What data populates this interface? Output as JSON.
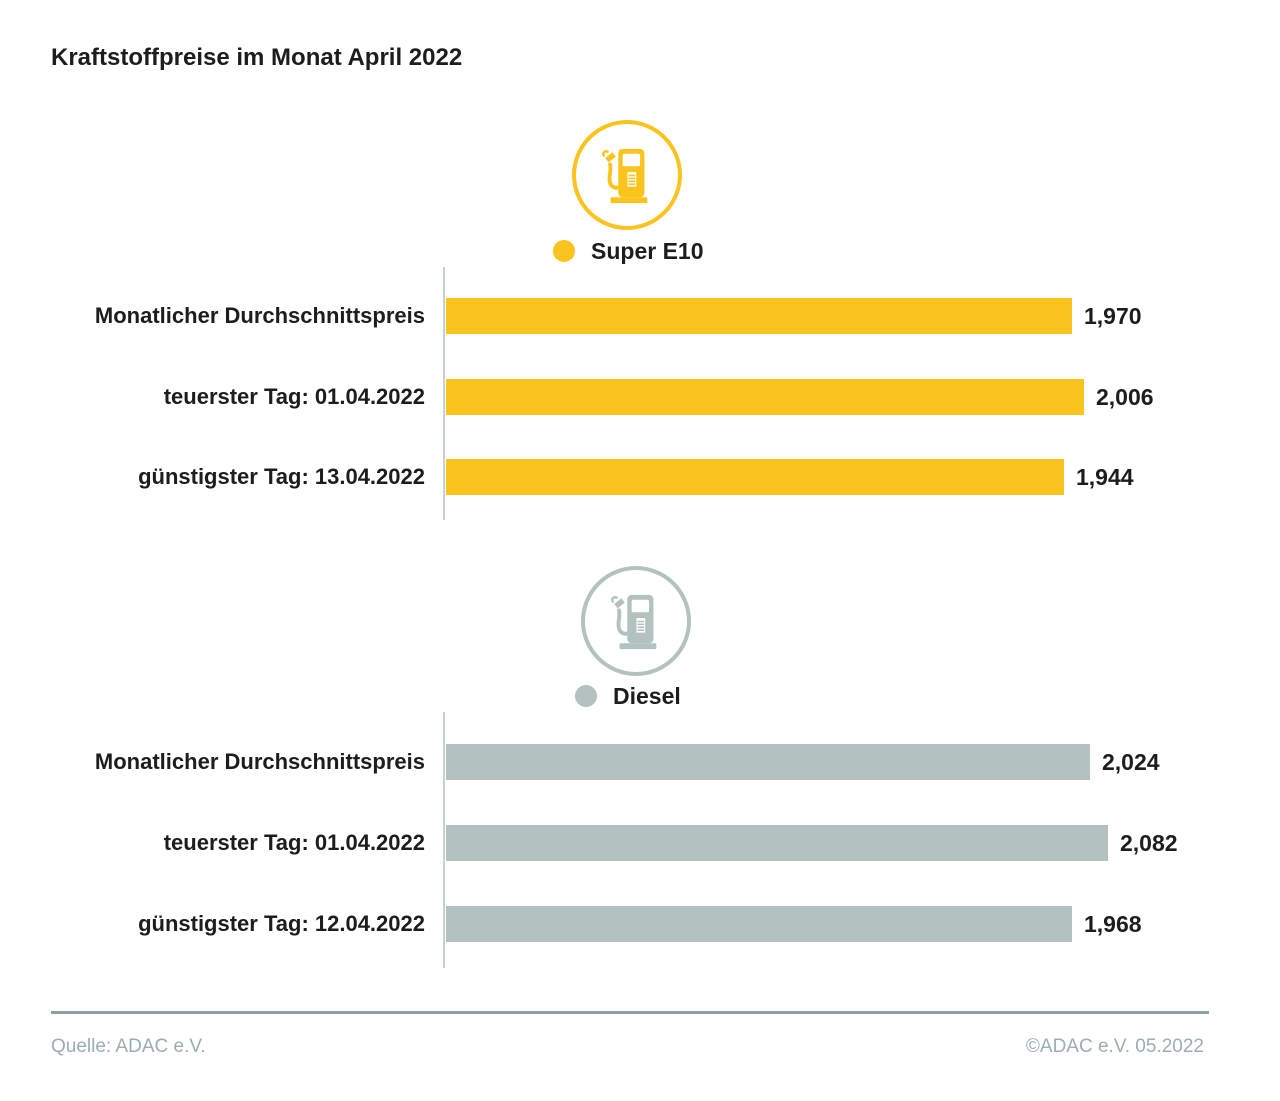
{
  "title": "Kraftstoffpreise im Monat April 2022",
  "footer": {
    "source": "Quelle: ADAC e.V.",
    "copyright": "©ADAC e.V. 05.2022"
  },
  "colors": {
    "super_e10": "#FBC31D",
    "diesel": "#B3C2BF",
    "text": "#1D1D1B",
    "muted_text": "#9BAEB0",
    "axis_line": "#C7D1D1",
    "divider": "#8EA2A3"
  },
  "chart_data": [
    {
      "type": "bar",
      "orientation": "horizontal",
      "legend": "Super E10",
      "icon": "fuel-pump-icon",
      "color": "#FBC31D",
      "categories": [
        "Monatlicher Durchschnittspreis",
        "teuerster Tag: 01.04.2022",
        "günstigster Tag: 13.04.2022"
      ],
      "values": [
        1.97,
        2.006,
        1.944
      ],
      "value_labels": [
        "1,970",
        "2,006",
        "1,944"
      ],
      "value_label_position": "right",
      "xlim": [
        0,
        2.3
      ],
      "grid": false
    },
    {
      "type": "bar",
      "orientation": "horizontal",
      "legend": "Diesel",
      "icon": "fuel-pump-icon",
      "color": "#B3C2BF",
      "categories": [
        "Monatlicher Durchschnittspreis",
        "teuerster Tag: 01.04.2022",
        "günstigster Tag: 12.04.2022"
      ],
      "values": [
        2.024,
        2.082,
        1.968
      ],
      "value_labels": [
        "2,024",
        "2,082",
        "1,968"
      ],
      "value_label_position": "right",
      "xlim": [
        0,
        2.3
      ],
      "grid": false
    }
  ]
}
